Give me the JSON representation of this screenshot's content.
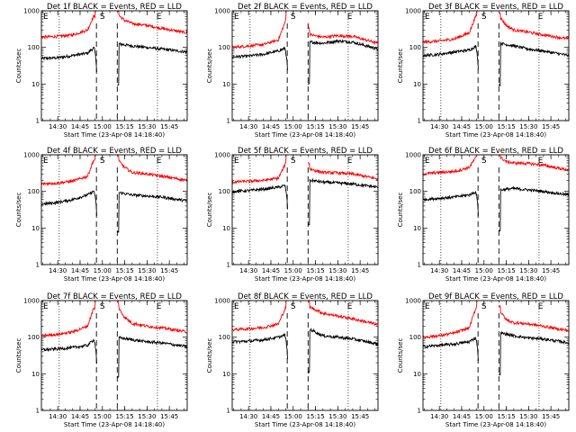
{
  "chart_data": {
    "type": "line",
    "x_unit": "HH:MM UT",
    "x_range": [
      "14:19",
      "15:57"
    ],
    "x_ticks": [
      "14:30",
      "14:45",
      "15:00",
      "15:15",
      "15:30",
      "15:45"
    ],
    "xlabel": "Start Time (23-Apr-08 14:18:40)",
    "ylabel": "Counts/sec",
    "y_scale": "log",
    "ylim": [
      1,
      1000
    ],
    "y_ticks": [
      "1",
      "10",
      "100",
      "1000"
    ],
    "vlines": {
      "dotted": [
        "14:31",
        "15:37"
      ],
      "dashed": [
        "14:56",
        "15:10"
      ]
    },
    "markers": [
      {
        "label": "E",
        "x": "14:19"
      },
      {
        "label": "S",
        "x": "15:00"
      },
      {
        "label": "E",
        "x": "15:38"
      }
    ],
    "series_colors": {
      "Events": "#000000",
      "LLD": "#ff0000"
    },
    "panels": [
      {
        "title": "Det 1f BLACK = Events, RED = LLD",
        "events": [
          [
            "14:19",
            50
          ],
          [
            "14:30",
            52
          ],
          [
            "14:40",
            60
          ],
          [
            "14:50",
            70
          ],
          [
            "14:54",
            95
          ],
          [
            "15:11",
            125
          ],
          [
            "15:20",
            110
          ],
          [
            "15:30",
            100
          ],
          [
            "15:40",
            90
          ],
          [
            "15:57",
            75
          ]
        ],
        "lld": [
          [
            "14:19",
            190
          ],
          [
            "14:30",
            200
          ],
          [
            "14:40",
            220
          ],
          [
            "14:50",
            300
          ],
          [
            "14:54",
            700
          ],
          [
            "15:11",
            750
          ],
          [
            "15:15",
            550
          ],
          [
            "15:20",
            450
          ],
          [
            "15:30",
            400
          ],
          [
            "15:40",
            330
          ],
          [
            "15:57",
            250
          ]
        ]
      },
      {
        "title": "Det 2f BLACK = Events, RED = LLD",
        "events": [
          [
            "14:19",
            55
          ],
          [
            "14:30",
            58
          ],
          [
            "14:40",
            65
          ],
          [
            "14:50",
            80
          ],
          [
            "14:56",
            100
          ],
          [
            "15:12",
            140
          ],
          [
            "15:20",
            130
          ],
          [
            "15:30",
            150
          ],
          [
            "15:40",
            140
          ],
          [
            "15:57",
            90
          ]
        ],
        "lld": [
          [
            "14:19",
            100
          ],
          [
            "14:30",
            110
          ],
          [
            "14:40",
            120
          ],
          [
            "14:50",
            160
          ],
          [
            "14:56",
            700
          ],
          [
            "15:12",
            220
          ],
          [
            "15:20",
            190
          ],
          [
            "15:30",
            210
          ],
          [
            "15:40",
            200
          ],
          [
            "15:57",
            130
          ]
        ]
      },
      {
        "title": "Det 3f BLACK = Events, RED = LLD",
        "events": [
          [
            "14:19",
            60
          ],
          [
            "14:30",
            65
          ],
          [
            "14:40",
            75
          ],
          [
            "14:50",
            85
          ],
          [
            "14:55",
            110
          ],
          [
            "15:11",
            130
          ],
          [
            "15:20",
            110
          ],
          [
            "15:30",
            90
          ],
          [
            "15:40",
            80
          ],
          [
            "15:57",
            60
          ]
        ],
        "lld": [
          [
            "14:19",
            140
          ],
          [
            "14:30",
            150
          ],
          [
            "14:40",
            170
          ],
          [
            "14:50",
            250
          ],
          [
            "14:55",
            800
          ],
          [
            "15:11",
            650
          ],
          [
            "15:15",
            400
          ],
          [
            "15:20",
            300
          ],
          [
            "15:30",
            260
          ],
          [
            "15:40",
            220
          ],
          [
            "15:57",
            170
          ]
        ]
      },
      {
        "title": "Det 4f BLACK = Events, RED = LLD",
        "events": [
          [
            "14:19",
            45
          ],
          [
            "14:30",
            50
          ],
          [
            "14:40",
            60
          ],
          [
            "14:50",
            80
          ],
          [
            "14:54",
            100
          ],
          [
            "15:10",
            95
          ],
          [
            "15:20",
            80
          ],
          [
            "15:30",
            75
          ],
          [
            "15:40",
            70
          ],
          [
            "15:57",
            55
          ]
        ],
        "lld": [
          [
            "14:19",
            160
          ],
          [
            "14:30",
            170
          ],
          [
            "14:40",
            190
          ],
          [
            "14:50",
            260
          ],
          [
            "14:54",
            700
          ],
          [
            "15:10",
            750
          ],
          [
            "15:15",
            450
          ],
          [
            "15:20",
            330
          ],
          [
            "15:30",
            300
          ],
          [
            "15:40",
            260
          ],
          [
            "15:57",
            200
          ]
        ]
      },
      {
        "title": "Det 5f BLACK = Events, RED = LLD",
        "events": [
          [
            "14:19",
            100
          ],
          [
            "14:30",
            105
          ],
          [
            "14:40",
            115
          ],
          [
            "14:50",
            130
          ],
          [
            "14:56",
            150
          ],
          [
            "15:12",
            200
          ],
          [
            "15:20",
            180
          ],
          [
            "15:30",
            170
          ],
          [
            "15:40",
            160
          ],
          [
            "15:57",
            130
          ]
        ],
        "lld": [
          [
            "14:19",
            180
          ],
          [
            "14:30",
            190
          ],
          [
            "14:40",
            200
          ],
          [
            "14:50",
            230
          ],
          [
            "14:56",
            700
          ],
          [
            "15:12",
            400
          ],
          [
            "15:20",
            330
          ],
          [
            "15:30",
            320
          ],
          [
            "15:40",
            300
          ],
          [
            "15:57",
            220
          ]
        ]
      },
      {
        "title": "Det 6f BLACK = Events, RED = LLD",
        "events": [
          [
            "14:19",
            60
          ],
          [
            "14:30",
            65
          ],
          [
            "14:40",
            70
          ],
          [
            "14:50",
            80
          ],
          [
            "14:55",
            100
          ],
          [
            "15:11",
            110
          ],
          [
            "15:20",
            120
          ],
          [
            "15:30",
            110
          ],
          [
            "15:40",
            100
          ],
          [
            "15:57",
            80
          ]
        ],
        "lld": [
          [
            "14:19",
            300
          ],
          [
            "14:30",
            330
          ],
          [
            "14:40",
            350
          ],
          [
            "14:50",
            450
          ],
          [
            "14:55",
            900
          ],
          [
            "15:11",
            850
          ],
          [
            "15:15",
            650
          ],
          [
            "15:20",
            600
          ],
          [
            "15:30",
            580
          ],
          [
            "15:40",
            520
          ],
          [
            "15:57",
            380
          ]
        ]
      },
      {
        "title": "Det 7f BLACK = Events, RED = LLD",
        "events": [
          [
            "14:19",
            45
          ],
          [
            "14:30",
            48
          ],
          [
            "14:40",
            52
          ],
          [
            "14:50",
            60
          ],
          [
            "14:54",
            85
          ],
          [
            "15:10",
            100
          ],
          [
            "15:20",
            85
          ],
          [
            "15:30",
            75
          ],
          [
            "15:40",
            70
          ],
          [
            "15:57",
            55
          ]
        ],
        "lld": [
          [
            "14:19",
            110
          ],
          [
            "14:30",
            120
          ],
          [
            "14:40",
            140
          ],
          [
            "14:50",
            200
          ],
          [
            "14:54",
            600
          ],
          [
            "15:10",
            700
          ],
          [
            "15:15",
            350
          ],
          [
            "15:20",
            240
          ],
          [
            "15:30",
            200
          ],
          [
            "15:40",
            180
          ],
          [
            "15:57",
            140
          ]
        ]
      },
      {
        "title": "Det 8f BLACK = Events, RED = LLD",
        "events": [
          [
            "14:19",
            75
          ],
          [
            "14:30",
            78
          ],
          [
            "14:40",
            85
          ],
          [
            "14:50",
            100
          ],
          [
            "14:56",
            120
          ],
          [
            "15:12",
            160
          ],
          [
            "15:20",
            110
          ],
          [
            "15:30",
            100
          ],
          [
            "15:40",
            90
          ],
          [
            "15:57",
            65
          ]
        ],
        "lld": [
          [
            "14:19",
            160
          ],
          [
            "14:30",
            170
          ],
          [
            "14:40",
            185
          ],
          [
            "14:50",
            230
          ],
          [
            "14:56",
            800
          ],
          [
            "15:12",
            650
          ],
          [
            "15:20",
            450
          ],
          [
            "15:30",
            380
          ],
          [
            "15:40",
            320
          ],
          [
            "15:57",
            220
          ]
        ]
      },
      {
        "title": "Det 9f BLACK = Events, RED = LLD",
        "events": [
          [
            "14:19",
            55
          ],
          [
            "14:30",
            60
          ],
          [
            "14:40",
            65
          ],
          [
            "14:50",
            75
          ],
          [
            "14:55",
            100
          ],
          [
            "15:11",
            130
          ],
          [
            "15:20",
            110
          ],
          [
            "15:30",
            95
          ],
          [
            "15:40",
            90
          ],
          [
            "15:57",
            70
          ]
        ],
        "lld": [
          [
            "14:19",
            100
          ],
          [
            "14:30",
            110
          ],
          [
            "14:40",
            130
          ],
          [
            "14:50",
            180
          ],
          [
            "14:55",
            700
          ],
          [
            "15:11",
            500
          ],
          [
            "15:15",
            300
          ],
          [
            "15:20",
            250
          ],
          [
            "15:30",
            230
          ],
          [
            "15:40",
            200
          ],
          [
            "15:57",
            150
          ]
        ]
      }
    ]
  }
}
